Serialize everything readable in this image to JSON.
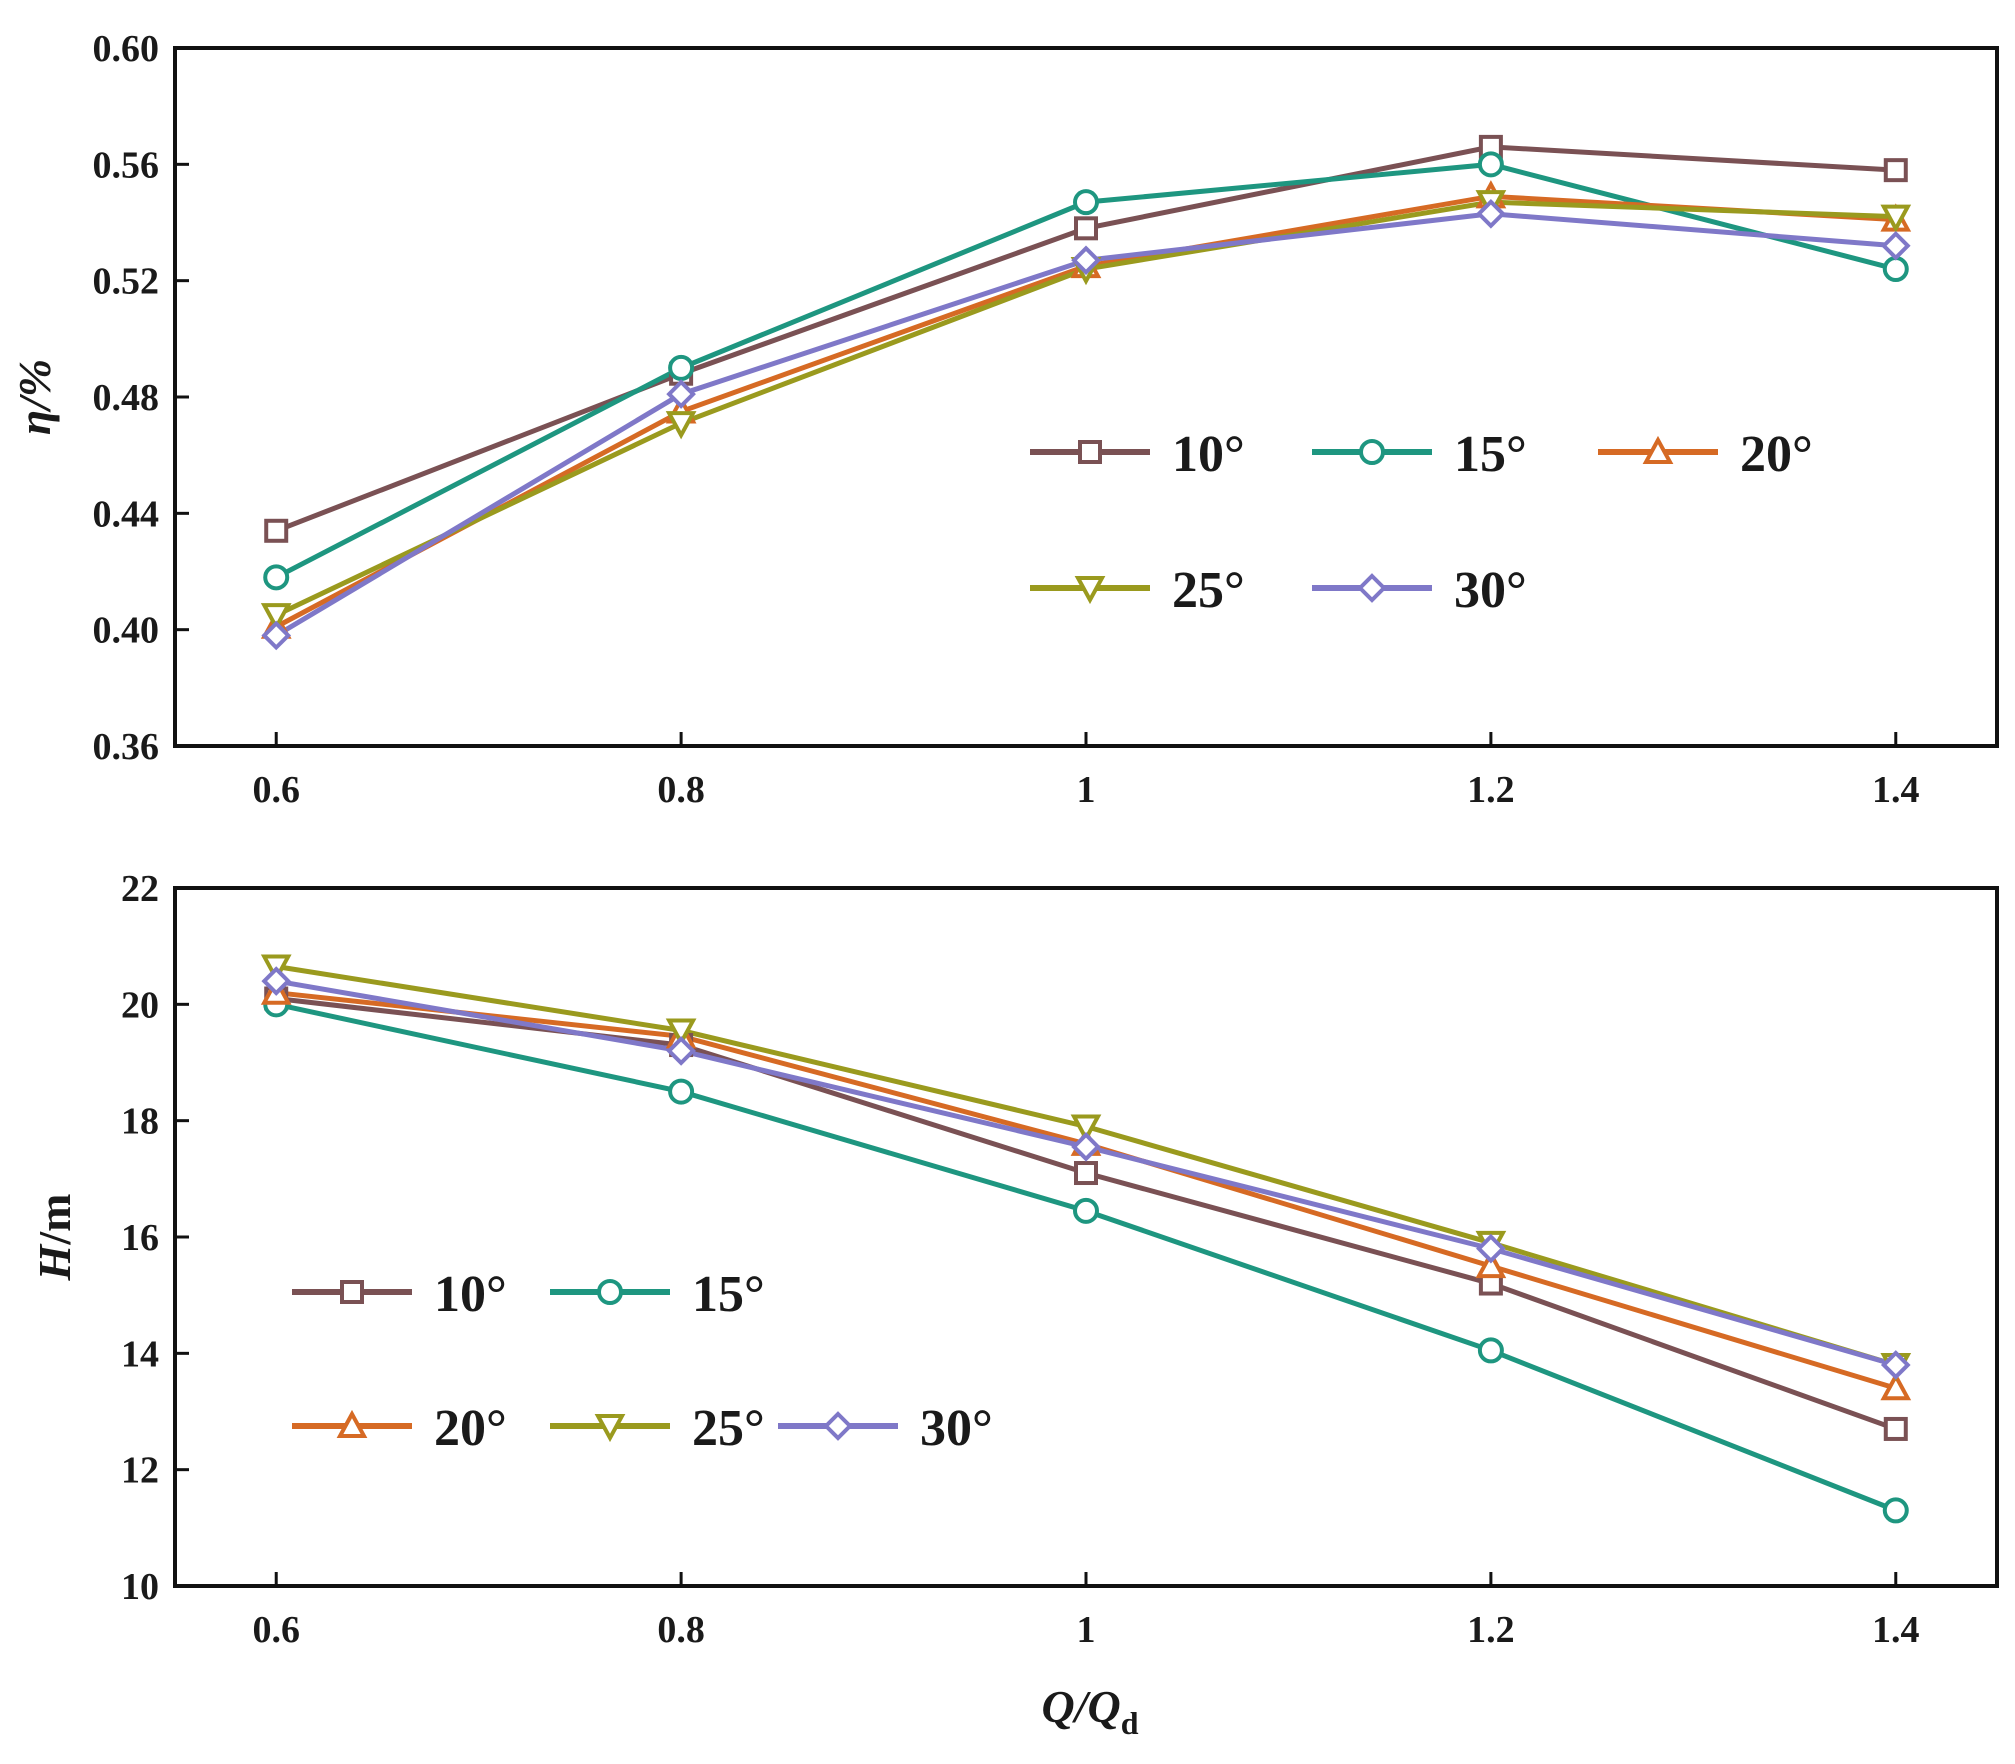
{
  "chart_data": [
    {
      "type": "line",
      "id": "efficiency",
      "ylabel": "η/%",
      "xlabel": "",
      "xlim": [
        0.55,
        1.45
      ],
      "ylim": [
        0.36,
        0.6
      ],
      "x": [
        0.6,
        0.8,
        1.0,
        1.2,
        1.4
      ],
      "xtick_labels": [
        "0.6",
        "0.8",
        "1",
        "1.2",
        "1.4"
      ],
      "yticks": [
        0.36,
        0.4,
        0.44,
        0.48,
        0.52,
        0.56,
        0.6
      ],
      "ytick_labels": [
        "0.36",
        "0.40",
        "0.44",
        "0.48",
        "0.52",
        "0.56",
        "0.60"
      ],
      "legend_location": "center-right",
      "series": [
        {
          "name": "10°",
          "color": "#7a5154",
          "marker": "square",
          "values": [
            0.434,
            0.488,
            0.538,
            0.566,
            0.558
          ]
        },
        {
          "name": "15°",
          "color": "#1e9680",
          "marker": "circle",
          "values": [
            0.418,
            0.49,
            0.547,
            0.56,
            0.524
          ]
        },
        {
          "name": "20°",
          "color": "#d66a24",
          "marker": "triangle-up",
          "values": [
            0.401,
            0.475,
            0.525,
            0.549,
            0.541
          ]
        },
        {
          "name": "25°",
          "color": "#9a9a1e",
          "marker": "triangle-down",
          "values": [
            0.405,
            0.471,
            0.524,
            0.547,
            0.542
          ]
        },
        {
          "name": "30°",
          "color": "#7f78c8",
          "marker": "diamond",
          "values": [
            0.398,
            0.481,
            0.527,
            0.543,
            0.532
          ]
        }
      ]
    },
    {
      "type": "line",
      "id": "head",
      "ylabel_italic": "H",
      "ylabel_rest": "/m",
      "xlabel_main": "Q/Q",
      "xlabel_sub": "d",
      "xlim": [
        0.55,
        1.45
      ],
      "ylim": [
        10,
        22
      ],
      "x": [
        0.6,
        0.8,
        1.0,
        1.2,
        1.4
      ],
      "xtick_labels": [
        "0.6",
        "0.8",
        "1",
        "1.2",
        "1.4"
      ],
      "yticks": [
        10,
        12,
        14,
        16,
        18,
        20,
        22
      ],
      "ytick_labels": [
        "10",
        "12",
        "14",
        "16",
        "18",
        "20",
        "22"
      ],
      "legend_location": "center-left",
      "series": [
        {
          "name": "10°",
          "color": "#7a5154",
          "marker": "square",
          "values": [
            20.1,
            19.3,
            17.1,
            15.2,
            12.7
          ]
        },
        {
          "name": "15°",
          "color": "#1e9680",
          "marker": "circle",
          "values": [
            20.0,
            18.5,
            16.45,
            14.05,
            11.3
          ]
        },
        {
          "name": "20°",
          "color": "#d66a24",
          "marker": "triangle-up",
          "values": [
            20.2,
            19.45,
            17.6,
            15.5,
            13.4
          ]
        },
        {
          "name": "25°",
          "color": "#9a9a1e",
          "marker": "triangle-down",
          "values": [
            20.65,
            19.55,
            17.9,
            15.9,
            13.8
          ]
        },
        {
          "name": "30°",
          "color": "#7f78c8",
          "marker": "diamond",
          "values": [
            20.4,
            19.2,
            17.55,
            15.8,
            13.8
          ]
        }
      ]
    }
  ]
}
